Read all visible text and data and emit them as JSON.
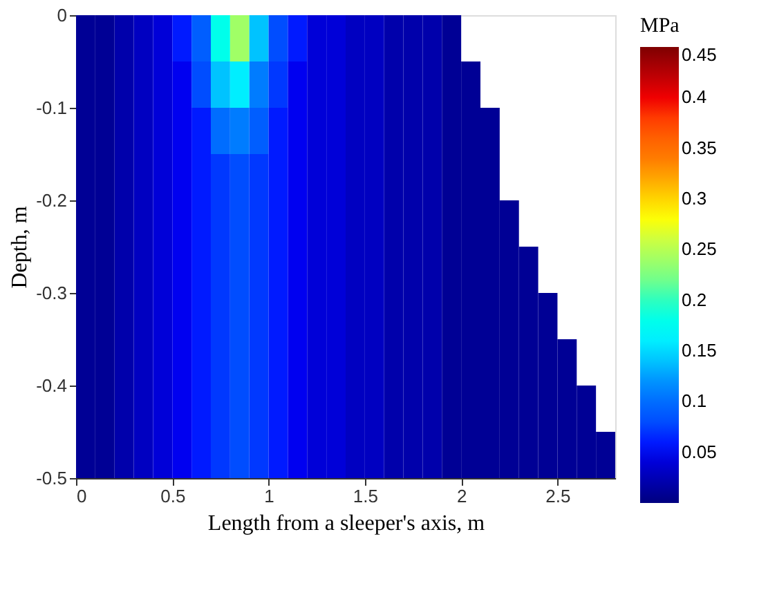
{
  "chart_data": {
    "type": "heatmap",
    "xlabel": "Length from a sleeper's axis, m",
    "ylabel": "Depth, m",
    "clabel": "MPa",
    "x": [
      0.05,
      0.15,
      0.25,
      0.35,
      0.45,
      0.55,
      0.65,
      0.75,
      0.85,
      0.95,
      1.05,
      1.15,
      1.25,
      1.35,
      1.45,
      1.55,
      1.65,
      1.75,
      1.85,
      1.95,
      2.05,
      2.15,
      2.25,
      2.35,
      2.45,
      2.55,
      2.65,
      2.75
    ],
    "y": [
      -0.025,
      -0.075,
      -0.125,
      -0.175,
      -0.225,
      -0.275,
      -0.325,
      -0.375,
      -0.425,
      -0.475
    ],
    "cells": [
      [
        0.01,
        0.01,
        0.02,
        0.03,
        0.04,
        0.06,
        0.09,
        0.18,
        0.24,
        0.14,
        0.08,
        0.06,
        0.04,
        0.04,
        0.03,
        0.03,
        0.02,
        0.02,
        0.02,
        0.01,
        null,
        null,
        null,
        null,
        null,
        null,
        null,
        null
      ],
      [
        0.01,
        0.01,
        0.02,
        0.03,
        0.04,
        0.05,
        0.08,
        0.14,
        0.16,
        0.11,
        0.07,
        0.05,
        0.04,
        0.04,
        0.03,
        0.03,
        0.02,
        0.02,
        0.02,
        0.01,
        0.01,
        null,
        null,
        null,
        null,
        null,
        null,
        null
      ],
      [
        0.01,
        0.01,
        0.02,
        0.03,
        0.04,
        0.05,
        0.06,
        0.1,
        0.11,
        0.09,
        0.06,
        0.05,
        0.04,
        0.04,
        0.03,
        0.03,
        0.02,
        0.02,
        0.02,
        0.01,
        0.01,
        0.01,
        null,
        null,
        null,
        null,
        null,
        null
      ],
      [
        0.01,
        0.01,
        0.02,
        0.03,
        0.04,
        0.05,
        0.06,
        0.07,
        0.08,
        0.07,
        0.06,
        0.05,
        0.04,
        0.04,
        0.03,
        0.03,
        0.02,
        0.02,
        0.02,
        0.01,
        0.01,
        0.01,
        null,
        null,
        null,
        null,
        null,
        null
      ],
      [
        0.01,
        0.01,
        0.02,
        0.03,
        0.04,
        0.05,
        0.06,
        0.07,
        0.08,
        0.07,
        0.06,
        0.05,
        0.04,
        0.04,
        0.03,
        0.03,
        0.02,
        0.02,
        0.02,
        0.01,
        0.01,
        0.01,
        0.01,
        null,
        null,
        null,
        null,
        null
      ],
      [
        0.01,
        0.01,
        0.02,
        0.03,
        0.04,
        0.05,
        0.06,
        0.07,
        0.08,
        0.07,
        0.06,
        0.05,
        0.04,
        0.04,
        0.03,
        0.03,
        0.02,
        0.02,
        0.02,
        0.01,
        0.01,
        0.01,
        0.01,
        0.01,
        null,
        null,
        null,
        null
      ],
      [
        0.01,
        0.01,
        0.02,
        0.03,
        0.04,
        0.05,
        0.06,
        0.07,
        0.08,
        0.07,
        0.06,
        0.05,
        0.04,
        0.04,
        0.03,
        0.03,
        0.02,
        0.02,
        0.02,
        0.01,
        0.01,
        0.01,
        0.01,
        0.01,
        0.01,
        null,
        null,
        null
      ],
      [
        0.01,
        0.01,
        0.02,
        0.03,
        0.04,
        0.05,
        0.06,
        0.07,
        0.08,
        0.07,
        0.06,
        0.05,
        0.04,
        0.04,
        0.03,
        0.03,
        0.02,
        0.02,
        0.02,
        0.01,
        0.01,
        0.01,
        0.01,
        0.01,
        0.01,
        0.01,
        null,
        null
      ],
      [
        0.01,
        0.01,
        0.02,
        0.03,
        0.04,
        0.05,
        0.06,
        0.07,
        0.08,
        0.07,
        0.06,
        0.05,
        0.04,
        0.04,
        0.03,
        0.03,
        0.02,
        0.02,
        0.02,
        0.01,
        0.01,
        0.01,
        0.01,
        0.01,
        0.01,
        0.01,
        0.01,
        null
      ],
      [
        0.01,
        0.01,
        0.02,
        0.03,
        0.04,
        0.05,
        0.06,
        0.07,
        0.08,
        0.07,
        0.06,
        0.05,
        0.04,
        0.04,
        0.03,
        0.03,
        0.02,
        0.02,
        0.02,
        0.01,
        0.01,
        0.01,
        0.01,
        0.01,
        0.01,
        0.01,
        0.01,
        0.01
      ]
    ],
    "xlim": [
      0,
      2.8
    ],
    "xticks": [
      0,
      0.5,
      1,
      1.5,
      2,
      2.5
    ],
    "ylim": [
      -0.5,
      0
    ],
    "yticks": [
      -0.5,
      -0.4,
      -0.3,
      -0.2,
      -0.1,
      0
    ],
    "clim": [
      0,
      0.45
    ],
    "cticks": [
      0.05,
      0.1,
      0.15,
      0.2,
      0.25,
      0.3,
      0.35,
      0.4,
      0.45
    ],
    "grid": false
  }
}
